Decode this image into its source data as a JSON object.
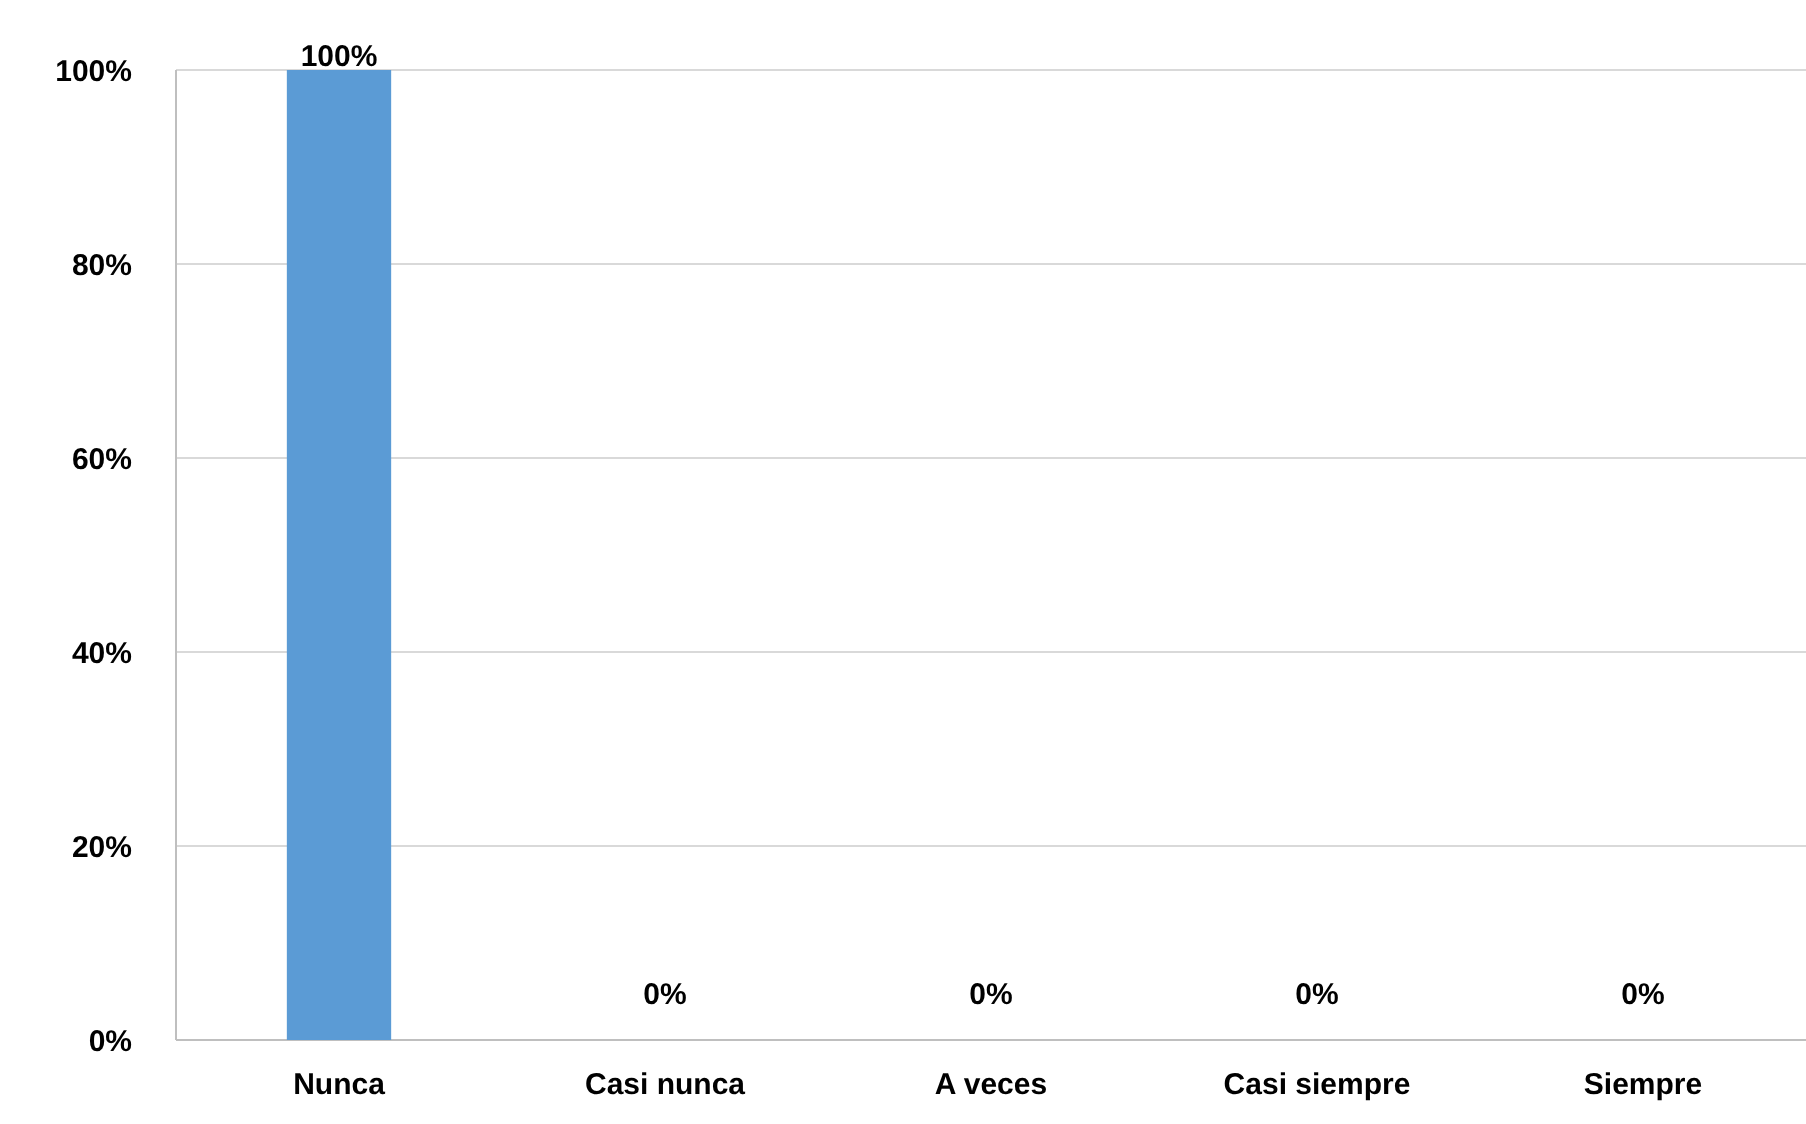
{
  "chart_data": {
    "type": "bar",
    "categories": [
      "Nunca",
      "Casi nunca",
      "A veces",
      "Casi siempre",
      "Siempre"
    ],
    "values": [
      100,
      0,
      0,
      0,
      0
    ],
    "color": "#5b9bd5",
    "value_labels": [
      "100%",
      "0%",
      "0%",
      "0%",
      "0%"
    ],
    "ylim": [
      0,
      100
    ],
    "yticks": [
      {
        "value": 0,
        "label": "0%"
      },
      {
        "value": 20,
        "label": "20%"
      },
      {
        "value": 40,
        "label": "40%"
      },
      {
        "value": 60,
        "label": "60%"
      },
      {
        "value": 80,
        "label": "80%"
      },
      {
        "value": 100,
        "label": "100%"
      }
    ],
    "grid": "y"
  }
}
